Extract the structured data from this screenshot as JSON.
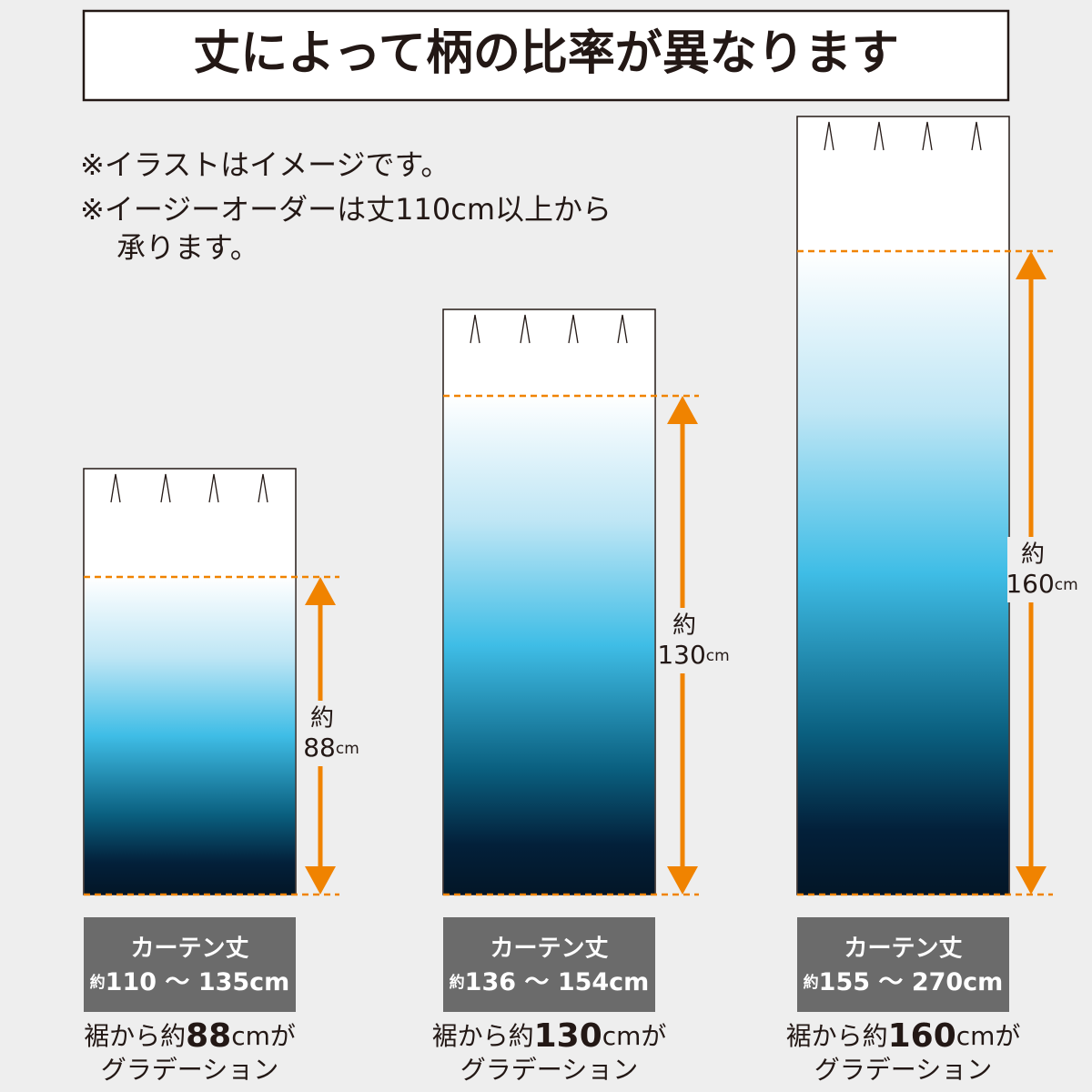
{
  "header": {
    "title": "丈によって柄の比率が異なります"
  },
  "notes": [
    "※イラストはイメージです。",
    "※イージーオーダーは丈110cm以上から",
    "承ります。"
  ],
  "curtains": [
    {
      "measure_prefix": "約",
      "measure": "88",
      "measure_unit": "cm",
      "box_title": "カーテン丈",
      "range_prefix": "約",
      "range": "110 〜 135cm",
      "caption_prefix": "裾から約",
      "caption_value": "88",
      "caption_suffix": "cmが",
      "caption_line2": "グラデーション"
    },
    {
      "measure_prefix": "約",
      "measure": "130",
      "measure_unit": "cm",
      "box_title": "カーテン丈",
      "range_prefix": "約",
      "range": "136 〜 154cm",
      "caption_prefix": "裾から約",
      "caption_value": "130",
      "caption_suffix": "cmが",
      "caption_line2": "グラデーション"
    },
    {
      "measure_prefix": "約",
      "measure": "160",
      "measure_unit": "cm",
      "box_title": "カーテン丈",
      "range_prefix": "約",
      "range": "155 〜 270cm",
      "caption_prefix": "裾から約",
      "caption_value": "160",
      "caption_suffix": "cmが",
      "caption_line2": "グラデーション"
    }
  ]
}
